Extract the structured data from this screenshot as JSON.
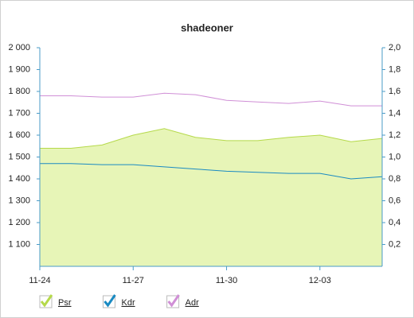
{
  "chart_data": {
    "type": "line",
    "title": "shadeoner",
    "categories": [
      "11-24",
      null,
      null,
      "11-27",
      null,
      null,
      "11-30",
      null,
      null,
      "12-03",
      null,
      null
    ],
    "series": [
      {
        "name": "Psr",
        "type": "area",
        "color": "#b5d94a",
        "fill": "#e7f5b7",
        "values": [
          1540,
          1540,
          1555,
          1600,
          1630,
          1590,
          1575,
          1575,
          1590,
          1600,
          1570,
          1585
        ]
      },
      {
        "name": "Kdr",
        "axis": "y2",
        "color": "#1a8ac2",
        "values": [
          0.94,
          0.94,
          0.93,
          0.93,
          0.91,
          0.89,
          0.87,
          0.86,
          0.85,
          0.85,
          0.8,
          0.82
        ]
      },
      {
        "name": "Adr",
        "color": "#d08fd6",
        "values": [
          1780,
          1780,
          1774,
          1774,
          1792,
          1785,
          1759,
          1752,
          1745,
          1756,
          1734,
          1734
        ]
      }
    ],
    "ylim": [
      1000,
      2000
    ],
    "yticks": [
      {
        "value": 1100,
        "label": "1 100"
      },
      {
        "value": 1200,
        "label": "1 200"
      },
      {
        "value": 1300,
        "label": "1 300"
      },
      {
        "value": 1400,
        "label": "1 400"
      },
      {
        "value": 1500,
        "label": "1 500"
      },
      {
        "value": 1600,
        "label": "1 600"
      },
      {
        "value": 1700,
        "label": "1 700"
      },
      {
        "value": 1800,
        "label": "1 800"
      },
      {
        "value": 1900,
        "label": "1 900"
      },
      {
        "value": 2000,
        "label": "2 000"
      }
    ],
    "y2lim": [
      0,
      2
    ],
    "y2ticks": [
      {
        "value": 0.2,
        "label": "0,2"
      },
      {
        "value": 0.4,
        "label": "0,4"
      },
      {
        "value": 0.6,
        "label": "0,6"
      },
      {
        "value": 0.8,
        "label": "0,8"
      },
      {
        "value": 1,
        "label": "1,0"
      },
      {
        "value": 1.2,
        "label": "1,2"
      },
      {
        "value": 1.4,
        "label": "1,4"
      },
      {
        "value": 1.6,
        "label": "1,6"
      },
      {
        "value": 1.8,
        "label": "1,8"
      },
      {
        "value": 2,
        "label": "2,0"
      }
    ],
    "grid": false,
    "legend": "bottom"
  }
}
